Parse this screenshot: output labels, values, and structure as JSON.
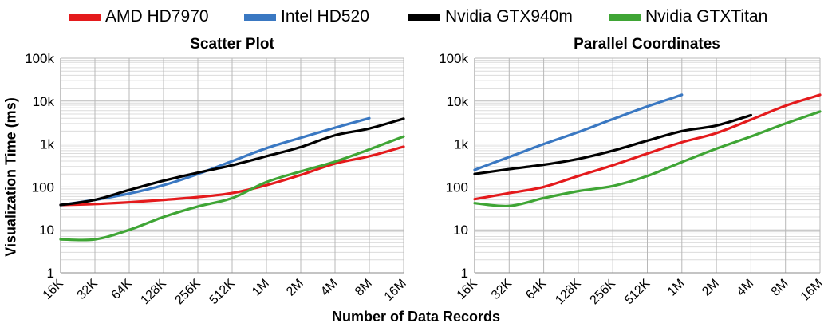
{
  "legend": [
    {
      "label": "AMD HD7970",
      "color": "#e41a1c"
    },
    {
      "label": "Intel HD520",
      "color": "#3a78c2"
    },
    {
      "label": "Nvidia GTX940m",
      "color": "#000000"
    },
    {
      "label": "Nvidia GTXTitan",
      "color": "#3fa535"
    }
  ],
  "ylabel": "Visualization Time (ms)",
  "xlabel": "Number of Data Records",
  "chart_data": [
    {
      "type": "line",
      "title": "Scatter Plot",
      "xlabel": "Number of Data Records",
      "ylabel": "Visualization Time (ms)",
      "y_scale": "log",
      "ylim": [
        1,
        100000
      ],
      "grid": true,
      "legend": "top",
      "y_ticks": [
        "1",
        "10",
        "100",
        "1k",
        "10k",
        "100k"
      ],
      "categories": [
        "16K",
        "32K",
        "64K",
        "128K",
        "256K",
        "512K",
        "1M",
        "2M",
        "4M",
        "8M",
        "16M"
      ],
      "series": [
        {
          "name": "AMD HD7970",
          "color": "#e41a1c",
          "values": [
            38,
            40,
            44,
            50,
            58,
            72,
            110,
            190,
            350,
            520,
            870
          ]
        },
        {
          "name": "Intel HD520",
          "color": "#3a78c2",
          "values": [
            38,
            50,
            70,
            110,
            200,
            400,
            800,
            1400,
            2400,
            4000,
            null
          ]
        },
        {
          "name": "Nvidia GTX940m",
          "color": "#000000",
          "values": [
            38,
            50,
            85,
            140,
            215,
            320,
            520,
            850,
            1600,
            2300,
            3900
          ]
        },
        {
          "name": "Nvidia GTXTitan",
          "color": "#3fa535",
          "values": [
            6,
            6,
            10,
            20,
            35,
            55,
            130,
            230,
            390,
            750,
            1500
          ]
        }
      ]
    },
    {
      "type": "line",
      "title": "Parallel Coordinates",
      "xlabel": "Number of Data Records",
      "ylabel": "Visualization Time (ms)",
      "y_scale": "log",
      "ylim": [
        1,
        100000
      ],
      "grid": true,
      "legend": "top",
      "y_ticks": [
        "1",
        "10",
        "100",
        "1k",
        "10k",
        "100k"
      ],
      "categories": [
        "16K",
        "32K",
        "64K",
        "128K",
        "256K",
        "512K",
        "1M",
        "2M",
        "4M",
        "8M",
        "16M"
      ],
      "series": [
        {
          "name": "AMD HD7970",
          "color": "#e41a1c",
          "values": [
            52,
            72,
            100,
            180,
            320,
            600,
            1100,
            1800,
            3700,
            7800,
            14000
          ]
        },
        {
          "name": "Intel HD520",
          "color": "#3a78c2",
          "values": [
            250,
            500,
            1000,
            1900,
            3800,
            7500,
            14000,
            null,
            null,
            null,
            null
          ]
        },
        {
          "name": "Nvidia GTX940m",
          "color": "#000000",
          "values": [
            200,
            260,
            330,
            450,
            700,
            1200,
            2000,
            2700,
            4700,
            null,
            null
          ]
        },
        {
          "name": "Nvidia GTXTitan",
          "color": "#3fa535",
          "values": [
            42,
            36,
            55,
            80,
            105,
            180,
            380,
            780,
            1500,
            3000,
            5700
          ]
        }
      ]
    }
  ]
}
